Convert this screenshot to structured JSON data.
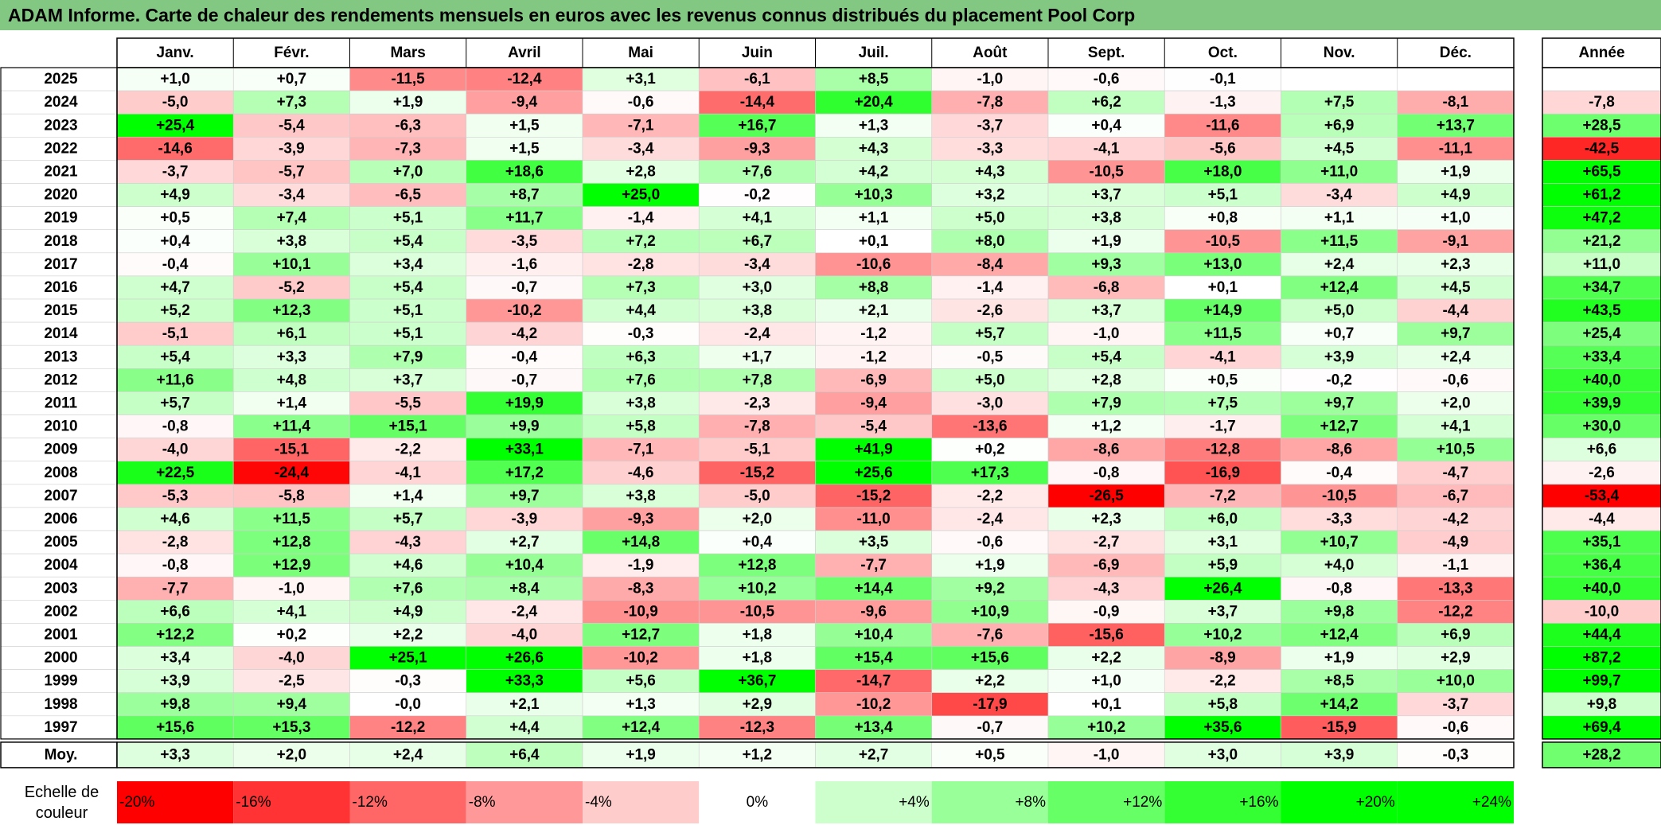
{
  "title": "ADAM Informe. Carte de chaleur des rendements mensuels en euros avec les revenus connus distribués du placement Pool Corp",
  "chart_data": {
    "type": "heatmap",
    "title": "ADAM Informe. Carte de chaleur des rendements mensuels en euros avec les revenus connus distribués du placement Pool Corp",
    "months": [
      "Janv.",
      "Févr.",
      "Mars",
      "Avril",
      "Mai",
      "Juin",
      "Juil.",
      "Août",
      "Sept.",
      "Oct.",
      "Nov.",
      "Déc."
    ],
    "year_column_label": "Année",
    "avg_row_label": "Moy.",
    "rows": [
      {
        "year": "2025",
        "values": [
          "+1,0",
          "+0,7",
          "-11,5",
          "-12,4",
          "+3,1",
          "-6,1",
          "+8,5",
          "-1,0",
          "-0,6",
          "-0,1",
          "",
          ""
        ],
        "annual": ""
      },
      {
        "year": "2024",
        "values": [
          "-5,0",
          "+7,3",
          "+1,9",
          "-9,4",
          "-0,6",
          "-14,4",
          "+20,4",
          "-7,8",
          "+6,2",
          "-1,3",
          "+7,5",
          "-8,1"
        ],
        "annual": "-7,8"
      },
      {
        "year": "2023",
        "values": [
          "+25,4",
          "-5,4",
          "-6,3",
          "+1,5",
          "-7,1",
          "+16,7",
          "+1,3",
          "-3,7",
          "+0,4",
          "-11,6",
          "+6,9",
          "+13,7"
        ],
        "annual": "+28,5"
      },
      {
        "year": "2022",
        "values": [
          "-14,6",
          "-3,9",
          "-7,3",
          "+1,5",
          "-3,4",
          "-9,3",
          "+4,3",
          "-3,3",
          "-4,1",
          "-5,6",
          "+4,5",
          "-11,1"
        ],
        "annual": "-42,5"
      },
      {
        "year": "2021",
        "values": [
          "-3,7",
          "-5,7",
          "+7,0",
          "+18,6",
          "+2,8",
          "+7,6",
          "+4,2",
          "+4,3",
          "-10,5",
          "+18,0",
          "+11,0",
          "+1,9"
        ],
        "annual": "+65,5"
      },
      {
        "year": "2020",
        "values": [
          "+4,9",
          "-3,4",
          "-6,5",
          "+8,7",
          "+25,0",
          "-0,2",
          "+10,3",
          "+3,2",
          "+3,7",
          "+5,1",
          "-3,4",
          "+4,9"
        ],
        "annual": "+61,2"
      },
      {
        "year": "2019",
        "values": [
          "+0,5",
          "+7,4",
          "+5,1",
          "+11,7",
          "-1,4",
          "+4,1",
          "+1,1",
          "+5,0",
          "+3,8",
          "+0,8",
          "+1,1",
          "+1,0"
        ],
        "annual": "+47,2"
      },
      {
        "year": "2018",
        "values": [
          "+0,4",
          "+3,8",
          "+5,4",
          "-3,5",
          "+7,2",
          "+6,7",
          "+0,1",
          "+8,0",
          "+1,9",
          "-10,5",
          "+11,5",
          "-9,1"
        ],
        "annual": "+21,2"
      },
      {
        "year": "2017",
        "values": [
          "-0,4",
          "+10,1",
          "+3,4",
          "-1,6",
          "-2,8",
          "-3,4",
          "-10,6",
          "-8,4",
          "+9,3",
          "+13,0",
          "+2,4",
          "+2,3"
        ],
        "annual": "+11,0"
      },
      {
        "year": "2016",
        "values": [
          "+4,7",
          "-5,2",
          "+5,4",
          "-0,7",
          "+7,3",
          "+3,0",
          "+8,8",
          "-1,4",
          "-6,8",
          "+0,1",
          "+12,4",
          "+4,5"
        ],
        "annual": "+34,7"
      },
      {
        "year": "2015",
        "values": [
          "+5,2",
          "+12,3",
          "+5,1",
          "-10,2",
          "+4,4",
          "+3,8",
          "+2,1",
          "-2,6",
          "+3,7",
          "+14,9",
          "+5,0",
          "-4,4"
        ],
        "annual": "+43,5"
      },
      {
        "year": "2014",
        "values": [
          "-5,1",
          "+6,1",
          "+5,1",
          "-4,2",
          "-0,3",
          "-2,4",
          "-1,2",
          "+5,7",
          "-1,0",
          "+11,5",
          "+0,7",
          "+9,7"
        ],
        "annual": "+25,4"
      },
      {
        "year": "2013",
        "values": [
          "+5,4",
          "+3,3",
          "+7,9",
          "-0,4",
          "+6,3",
          "+1,7",
          "-1,2",
          "-0,5",
          "+5,4",
          "-4,1",
          "+3,9",
          "+2,4"
        ],
        "annual": "+33,4"
      },
      {
        "year": "2012",
        "values": [
          "+11,6",
          "+4,8",
          "+3,7",
          "-0,7",
          "+7,6",
          "+7,8",
          "-6,9",
          "+5,0",
          "+2,8",
          "+0,5",
          "-0,2",
          "-0,6"
        ],
        "annual": "+40,0"
      },
      {
        "year": "2011",
        "values": [
          "+5,7",
          "+1,4",
          "-5,5",
          "+19,9",
          "+3,8",
          "-2,3",
          "-9,4",
          "-3,0",
          "+7,9",
          "+7,5",
          "+9,7",
          "+2,0"
        ],
        "annual": "+39,9"
      },
      {
        "year": "2010",
        "values": [
          "-0,8",
          "+11,4",
          "+15,1",
          "+9,9",
          "+5,8",
          "-7,8",
          "-5,4",
          "-13,6",
          "+1,2",
          "-1,7",
          "+12,7",
          "+4,1"
        ],
        "annual": "+30,0"
      },
      {
        "year": "2009",
        "values": [
          "-4,0",
          "-15,1",
          "-2,2",
          "+33,1",
          "-7,1",
          "-5,1",
          "+41,9",
          "+0,2",
          "-8,6",
          "-12,8",
          "-8,6",
          "+10,5"
        ],
        "annual": "+6,6"
      },
      {
        "year": "2008",
        "values": [
          "+22,5",
          "-24,4",
          "-4,1",
          "+17,2",
          "-4,6",
          "-15,2",
          "+25,6",
          "+17,3",
          "-0,8",
          "-16,9",
          "-0,4",
          "-4,7"
        ],
        "annual": "-2,6"
      },
      {
        "year": "2007",
        "values": [
          "-5,3",
          "-5,8",
          "+1,4",
          "+9,7",
          "+3,8",
          "-5,0",
          "-15,2",
          "-2,2",
          "-26,5",
          "-7,2",
          "-10,5",
          "-6,7"
        ],
        "annual": "-53,4"
      },
      {
        "year": "2006",
        "values": [
          "+4,6",
          "+11,5",
          "+5,7",
          "-3,9",
          "-9,3",
          "+2,0",
          "-11,0",
          "-2,4",
          "+2,3",
          "+6,0",
          "-3,3",
          "-4,2"
        ],
        "annual": "-4,4"
      },
      {
        "year": "2005",
        "values": [
          "-2,8",
          "+12,8",
          "-4,3",
          "+2,7",
          "+14,8",
          "+0,4",
          "+3,5",
          "-0,6",
          "-2,7",
          "+3,1",
          "+10,7",
          "-4,9"
        ],
        "annual": "+35,1"
      },
      {
        "year": "2004",
        "values": [
          "-0,8",
          "+12,9",
          "+4,6",
          "+10,4",
          "-1,9",
          "+12,8",
          "-7,7",
          "+1,9",
          "-6,9",
          "+5,9",
          "+4,0",
          "-1,1"
        ],
        "annual": "+36,4"
      },
      {
        "year": "2003",
        "values": [
          "-7,7",
          "-1,0",
          "+7,6",
          "+8,4",
          "-8,3",
          "+10,2",
          "+14,4",
          "+9,2",
          "-4,3",
          "+26,4",
          "-0,8",
          "-13,3"
        ],
        "annual": "+40,0"
      },
      {
        "year": "2002",
        "values": [
          "+6,6",
          "+4,1",
          "+4,9",
          "-2,4",
          "-10,9",
          "-10,5",
          "-9,6",
          "+10,9",
          "-0,9",
          "+3,7",
          "+9,8",
          "-12,2"
        ],
        "annual": "-10,0"
      },
      {
        "year": "2001",
        "values": [
          "+12,2",
          "+0,2",
          "+2,2",
          "-4,0",
          "+12,7",
          "+1,8",
          "+10,4",
          "-7,6",
          "-15,6",
          "+10,2",
          "+12,4",
          "+6,9"
        ],
        "annual": "+44,4"
      },
      {
        "year": "2000",
        "values": [
          "+3,4",
          "-4,0",
          "+25,1",
          "+26,6",
          "-10,2",
          "+1,8",
          "+15,4",
          "+15,6",
          "+2,2",
          "-8,9",
          "+1,9",
          "+2,9"
        ],
        "annual": "+87,2"
      },
      {
        "year": "1999",
        "values": [
          "+3,9",
          "-2,5",
          "-0,3",
          "+33,3",
          "+5,6",
          "+36,7",
          "-14,7",
          "+2,2",
          "+1,0",
          "-2,2",
          "+8,5",
          "+10,0"
        ],
        "annual": "+99,7"
      },
      {
        "year": "1998",
        "values": [
          "+9,8",
          "+9,4",
          "-0,0",
          "+2,1",
          "+1,3",
          "+2,9",
          "-10,2",
          "-17,9",
          "+0,1",
          "+5,8",
          "+14,2",
          "-3,7"
        ],
        "annual": "+9,8"
      },
      {
        "year": "1997",
        "values": [
          "+15,6",
          "+15,3",
          "-12,2",
          "+4,4",
          "+12,4",
          "-12,3",
          "+13,4",
          "-0,7",
          "+10,2",
          "+35,6",
          "-15,9",
          "-0,6"
        ],
        "annual": "+69,4"
      }
    ],
    "averages": [
      "+3,3",
      "+2,0",
      "+2,4",
      "+6,4",
      "+1,9",
      "+1,2",
      "+2,7",
      "+0,5",
      "-1,0",
      "+3,0",
      "+3,9",
      "-0,3"
    ],
    "average_annual": "+28,2",
    "scale_label": "Echelle de couleur",
    "scale": [
      {
        "label": "-20%",
        "value": -20
      },
      {
        "label": "-16%",
        "value": -16
      },
      {
        "label": "-12%",
        "value": -12
      },
      {
        "label": "-8%",
        "value": -8
      },
      {
        "label": "-4%",
        "value": -4
      },
      {
        "label": "0%",
        "value": 0
      },
      {
        "label": "+4%",
        "value": 4
      },
      {
        "label": "+8%",
        "value": 8
      },
      {
        "label": "+12%",
        "value": 12
      },
      {
        "label": "+16%",
        "value": 16
      },
      {
        "label": "+20%",
        "value": 20
      },
      {
        "label": "+24%",
        "value": 24
      }
    ],
    "colors": {
      "negative_max": "#ff0000",
      "neutral": "#ffffff",
      "positive_max": "#00ff00",
      "title_bar": "#82c882"
    }
  }
}
